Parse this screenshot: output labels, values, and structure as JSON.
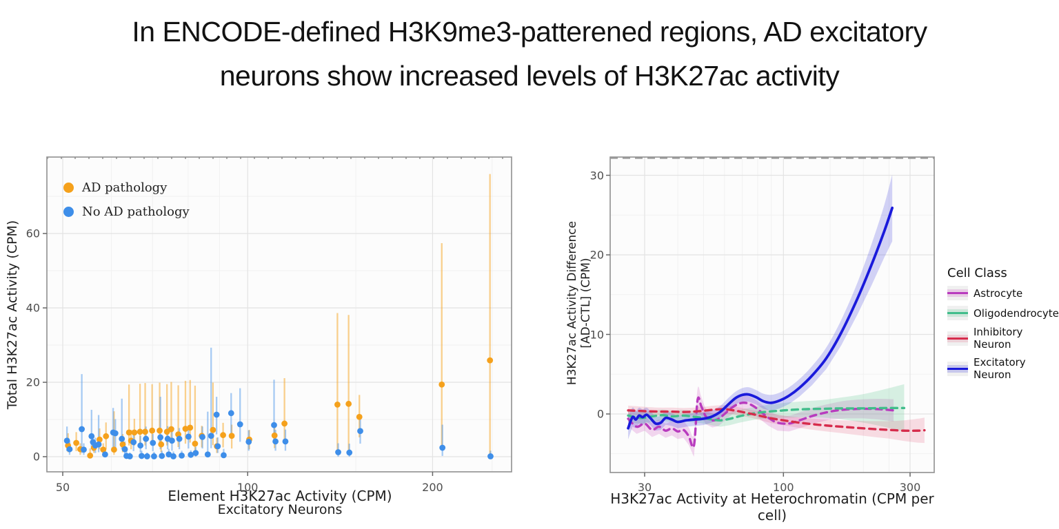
{
  "title": {
    "line1": "In ENCODE-defined H3K9me3-patterened regions, AD excitatory",
    "line2": "neurons show increased levels of H3K27ac activity"
  },
  "chart_data": [
    {
      "type": "scatter",
      "title": "",
      "x_axis": {
        "title": "Element H3K27ac Activity (CPM)",
        "subtitle": "Excitatory Neurons",
        "scale": "log",
        "ticks": [
          50,
          100,
          200
        ],
        "minor": [
          60,
          70,
          80,
          90,
          150,
          250
        ],
        "range": [
          47,
          270
        ]
      },
      "y_axis": {
        "title": "Total H3K27ac Activity (CPM)",
        "ticks": [
          0,
          20,
          40,
          60
        ],
        "minor": [
          10,
          30,
          50,
          70
        ],
        "range": [
          -4,
          80
        ]
      },
      "legend": [
        {
          "label": "AD pathology",
          "color": "#F5A11C"
        },
        {
          "label": "No AD pathology",
          "color": "#3E8EE9"
        }
      ],
      "grid": "on",
      "series": [
        {
          "name": "AD pathology",
          "color": "#F5A11C",
          "bar_color": "rgba(245,161,28,0.5)",
          "points": [
            [
              51,
              3.0,
              1.2,
              6.3
            ],
            [
              52.6,
              3.7,
              1.5,
              6.6
            ],
            [
              53.4,
              2.0,
              0.5,
              3.6
            ],
            [
              55.4,
              0.3,
              0,
              2.2
            ],
            [
              56.2,
              2.4,
              1,
              4.6
            ],
            [
              57.4,
              4.6,
              2,
              7.6
            ],
            [
              58.2,
              1.9,
              0.5,
              3.6
            ],
            [
              58.8,
              5.5,
              2,
              9.2
            ],
            [
              60.6,
              1.9,
              0.5,
              12.2
            ],
            [
              62.6,
              3.3,
              1.2,
              6.1
            ],
            [
              64.1,
              6.5,
              3,
              19.4
            ],
            [
              64.6,
              4.3,
              2,
              7.2
            ],
            [
              65.4,
              6.5,
              3,
              10.2
            ],
            [
              66.8,
              6.7,
              3,
              19.6
            ],
            [
              68.1,
              6.7,
              3,
              19.8
            ],
            [
              69.9,
              7.0,
              3.2,
              19.5
            ],
            [
              71.9,
              7.0,
              3.2,
              19.9
            ],
            [
              72.3,
              3.3,
              1.2,
              5.6
            ],
            [
              73.9,
              6.7,
              3,
              19.5
            ],
            [
              75.1,
              7.4,
              3.5,
              20.1
            ],
            [
              77.1,
              6.0,
              2.6,
              19.2
            ],
            [
              79.2,
              7.5,
              3.5,
              20.4
            ],
            [
              80.6,
              7.8,
              3.8,
              20.6
            ],
            [
              82.1,
              3.5,
              1.5,
              19.1
            ],
            [
              84.2,
              5.6,
              2.5,
              8.3
            ],
            [
              87.8,
              7.2,
              3.1,
              19.9
            ],
            [
              89.1,
              2.8,
              1,
              5.1
            ],
            [
              91.2,
              5.8,
              2.5,
              9.1
            ],
            [
              94.2,
              5.6,
              2.2,
              8.6
            ],
            [
              100.6,
              4.6,
              2,
              7.2
            ],
            [
              110.6,
              5.7,
              2.3,
              9.2
            ],
            [
              114.8,
              8.9,
              4,
              21.1
            ],
            [
              140,
              14.0,
              1.6,
              38.6
            ],
            [
              146,
              14.2,
              1.6,
              38.1
            ],
            [
              152,
              10.7,
              5.2,
              16.6
            ],
            [
              207,
              19.4,
              2.6,
              57.4
            ],
            [
              248,
              25.9,
              0.2,
              76
            ]
          ]
        },
        {
          "name": "No AD pathology",
          "color": "#3E8EE9",
          "bar_color": "rgba(62,142,233,0.45)",
          "points": [
            [
              50.8,
              4.3,
              1.5,
              8.1
            ],
            [
              51.3,
              2.0,
              0.5,
              4.1
            ],
            [
              53.7,
              7.4,
              1,
              22.2
            ],
            [
              54.1,
              1.9,
              0.5,
              3.6
            ],
            [
              55.7,
              5.5,
              2,
              12.6
            ],
            [
              56.0,
              3.9,
              1.5,
              6.2
            ],
            [
              56.5,
              3.0,
              1,
              5.1
            ],
            [
              57.2,
              3.3,
              1.2,
              11.2
            ],
            [
              58.6,
              0.6,
              0,
              2.1
            ],
            [
              60.4,
              6.5,
              2.5,
              13.1
            ],
            [
              60.9,
              6.3,
              2.2,
              10.1
            ],
            [
              62.4,
              4.8,
              2,
              15.6
            ],
            [
              63.1,
              2.0,
              0.6,
              4.1
            ],
            [
              63.5,
              0.2,
              0,
              1.6
            ],
            [
              64.3,
              0.1,
              0,
              1.1
            ],
            [
              65.2,
              3.9,
              1.5,
              6.6
            ],
            [
              66.9,
              3.0,
              1.1,
              5.6
            ],
            [
              67.2,
              0.2,
              0,
              1.6
            ],
            [
              68.3,
              4.8,
              2,
              8.1
            ],
            [
              68.6,
              0.1,
              0,
              1.1
            ],
            [
              70.1,
              3.7,
              1.5,
              6.1
            ],
            [
              70.4,
              0.1,
              0,
              1.3
            ],
            [
              72.1,
              5.2,
              2,
              16.1
            ],
            [
              72.5,
              0.2,
              0,
              1.6
            ],
            [
              74.1,
              4.8,
              2,
              8.2
            ],
            [
              74.4,
              0.6,
              0,
              2.1
            ],
            [
              75.3,
              4.3,
              1.6,
              7.1
            ],
            [
              75.7,
              0.1,
              0,
              1.4
            ],
            [
              77.4,
              4.8,
              2,
              7.7
            ],
            [
              78.1,
              0.3,
              0,
              1.6
            ],
            [
              80.1,
              5.4,
              2.2,
              8.4
            ],
            [
              80.8,
              0.5,
              0,
              1.7
            ],
            [
              82.3,
              1.0,
              0,
              2.6
            ],
            [
              84.4,
              5.3,
              2.2,
              8.1
            ],
            [
              86.1,
              0.6,
              0,
              12.1
            ],
            [
              87.2,
              5.6,
              2.3,
              29.3
            ],
            [
              89.0,
              11.3,
              6,
              16.1
            ],
            [
              89.4,
              2.8,
              1,
              5.2
            ],
            [
              91.4,
              0.4,
              0,
              2.1
            ],
            [
              94.0,
              11.7,
              6.2,
              17.1
            ],
            [
              97.2,
              8.7,
              4,
              18.4
            ],
            [
              100.4,
              4.0,
              1.6,
              7.1
            ],
            [
              110.4,
              8.5,
              4,
              20.7
            ],
            [
              111.0,
              4.1,
              1.6,
              7.2
            ],
            [
              115.2,
              4.1,
              1.6,
              7.3
            ],
            [
              140.4,
              1.2,
              0,
              3.6
            ],
            [
              146.4,
              1.1,
              0,
              3.5
            ],
            [
              152.5,
              6.9,
              3.5,
              10.3
            ],
            [
              207.5,
              2.4,
              0.2,
              8.6
            ],
            [
              248.5,
              0.1,
              0,
              1.6
            ]
          ]
        }
      ]
    },
    {
      "type": "line",
      "title": "",
      "x_axis": {
        "title": "H3K27ac Activity at Heterochromatin (CPM per cell)",
        "scale": "log",
        "ticks": [
          30,
          100,
          300
        ],
        "minor": [
          40,
          50,
          60,
          70,
          80,
          90,
          150,
          200,
          250
        ],
        "range": [
          22,
          370
        ]
      },
      "y_axis": {
        "title_line1": "H3K27ac Activity Difference",
        "title_line2": "[AD-CTL] (CPM)",
        "ticks": [
          0,
          10,
          20,
          30
        ],
        "minor": [
          -5,
          5,
          15,
          25
        ],
        "range": [
          -7.4,
          32.3
        ]
      },
      "legend_title": "Cell Class",
      "grid": "on",
      "series": [
        {
          "label": "Astrocyte",
          "color": "#B83BBE",
          "fill": "rgba(207,95,196,0.25)",
          "dash": "9 7",
          "x": [
            26,
            28,
            30,
            32,
            34,
            36,
            38,
            40,
            42,
            44,
            46,
            47.5,
            49,
            51,
            54,
            57,
            60,
            64,
            68,
            72,
            77,
            82,
            88,
            95,
            105,
            115,
            130,
            150,
            170,
            200,
            230,
            260
          ],
          "y": [
            -0.6,
            -1.6,
            -1.2,
            -2.0,
            -1.6,
            -2.1,
            -1.8,
            -2.2,
            -2.0,
            -2.8,
            -4.0,
            1.8,
            1.0,
            -0.3,
            -0.8,
            -0.6,
            0.0,
            0.8,
            1.3,
            1.4,
            1.0,
            0.3,
            -0.5,
            -1.1,
            -1.2,
            -0.8,
            -0.2,
            0.3,
            0.55,
            0.65,
            0.6,
            0.45
          ],
          "hw": [
            1.0,
            0.9,
            0.9,
            0.9,
            0.9,
            0.9,
            0.9,
            0.95,
            1.0,
            1.1,
            1.4,
            1.4,
            1.2,
            1.0,
            0.9,
            0.9,
            0.85,
            0.85,
            0.9,
            0.9,
            0.95,
            1.0,
            1.0,
            1.0,
            1.0,
            1.0,
            1.0,
            1.0,
            1.1,
            1.2,
            1.3,
            1.4
          ]
        },
        {
          "label": "Oligodendrocyte",
          "color": "#41BD8B",
          "fill": "rgba(80,195,135,0.22)",
          "dash": "9 7",
          "x": [
            26,
            29,
            32,
            35,
            38,
            42,
            46,
            50,
            54,
            58,
            63,
            68,
            74,
            80,
            88,
            96,
            105,
            120,
            140,
            160,
            185,
            215,
            250,
            285
          ],
          "y": [
            -0.2,
            -0.5,
            -0.3,
            -0.15,
            -0.3,
            -0.2,
            -0.35,
            -0.5,
            -0.7,
            -0.8,
            -0.6,
            -0.3,
            -0.05,
            0.15,
            0.3,
            0.4,
            0.5,
            0.6,
            0.65,
            0.7,
            0.7,
            0.72,
            0.75,
            0.75
          ],
          "hw": [
            0.8,
            0.75,
            0.7,
            0.7,
            0.7,
            0.7,
            0.7,
            0.7,
            0.75,
            0.8,
            0.8,
            0.8,
            0.8,
            0.8,
            0.85,
            0.9,
            0.95,
            1.0,
            1.1,
            1.3,
            1.6,
            2.0,
            2.5,
            3.0
          ]
        },
        {
          "label": "Inhibitory Neuron",
          "color": "#D62C4C",
          "fill": "rgba(225,70,110,0.18)",
          "dash": "9 7",
          "x": [
            26,
            30,
            34,
            38,
            42,
            46,
            50,
            55,
            60,
            65,
            70,
            76,
            82,
            90,
            100,
            112,
            126,
            145,
            165,
            190,
            220,
            250,
            285,
            320,
            340
          ],
          "y": [
            0.45,
            0.35,
            0.3,
            0.3,
            0.25,
            0.3,
            0.4,
            0.55,
            0.6,
            0.45,
            0.25,
            0.0,
            -0.25,
            -0.55,
            -0.8,
            -1.05,
            -1.25,
            -1.45,
            -1.6,
            -1.75,
            -1.9,
            -2.0,
            -2.1,
            -2.1,
            -2.05
          ],
          "hw": [
            0.6,
            0.55,
            0.5,
            0.5,
            0.5,
            0.5,
            0.5,
            0.5,
            0.5,
            0.5,
            0.5,
            0.5,
            0.55,
            0.6,
            0.6,
            0.65,
            0.7,
            0.75,
            0.8,
            0.9,
            1.0,
            1.1,
            1.3,
            1.5,
            1.6
          ]
        },
        {
          "label": "Excitatory Neuron",
          "color": "#1A1ADB",
          "fill": "rgba(80,80,225,0.25)",
          "dash": "",
          "x": [
            26,
            27,
            27.8,
            28.6,
            29.5,
            30.5,
            31.5,
            33,
            34.5,
            36,
            38,
            40,
            43,
            46,
            50,
            54,
            58,
            62,
            66,
            70,
            74,
            79,
            84,
            90,
            97,
            105,
            115,
            128,
            145,
            165,
            190,
            215,
            240,
            257
          ],
          "y": [
            -1.8,
            -0.4,
            -0.7,
            -0.2,
            -0.4,
            -0.1,
            -0.5,
            -1.2,
            -1.1,
            -0.5,
            -0.7,
            -1.0,
            -0.8,
            -0.7,
            -0.6,
            -0.3,
            0.3,
            1.2,
            2.0,
            2.4,
            2.45,
            2.1,
            1.6,
            1.4,
            1.7,
            2.3,
            3.3,
            4.8,
            7.0,
            10.2,
            14.5,
            18.8,
            23.0,
            25.9
          ],
          "hw": [
            1.4,
            1.2,
            1.1,
            1.0,
            1.0,
            0.9,
            0.9,
            0.9,
            0.9,
            0.85,
            0.8,
            0.8,
            0.8,
            0.8,
            0.8,
            0.75,
            0.75,
            0.8,
            0.8,
            0.85,
            0.9,
            0.9,
            0.95,
            1.0,
            1.0,
            1.05,
            1.1,
            1.2,
            1.35,
            1.6,
            2.0,
            2.6,
            3.3,
            4.2
          ]
        }
      ]
    }
  ]
}
